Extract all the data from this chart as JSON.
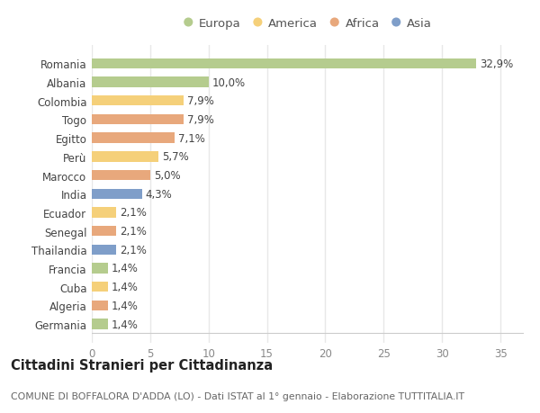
{
  "countries": [
    "Romania",
    "Albania",
    "Colombia",
    "Togo",
    "Egitto",
    "Perù",
    "Marocco",
    "India",
    "Ecuador",
    "Senegal",
    "Thailandia",
    "Francia",
    "Cuba",
    "Algeria",
    "Germania"
  ],
  "values": [
    32.9,
    10.0,
    7.9,
    7.9,
    7.1,
    5.7,
    5.0,
    4.3,
    2.1,
    2.1,
    2.1,
    1.4,
    1.4,
    1.4,
    1.4
  ],
  "labels": [
    "32,9%",
    "10,0%",
    "7,9%",
    "7,9%",
    "7,1%",
    "5,7%",
    "5,0%",
    "4,3%",
    "2,1%",
    "2,1%",
    "2,1%",
    "1,4%",
    "1,4%",
    "1,4%",
    "1,4%"
  ],
  "continents": [
    "Europa",
    "Europa",
    "America",
    "Africa",
    "Africa",
    "America",
    "Africa",
    "Asia",
    "America",
    "Africa",
    "Asia",
    "Europa",
    "America",
    "Africa",
    "Europa"
  ],
  "colors": {
    "Europa": "#b5cc8e",
    "America": "#f5d07a",
    "Africa": "#e8a87c",
    "Asia": "#7f9ec9"
  },
  "legend_order": [
    "Europa",
    "America",
    "Africa",
    "Asia"
  ],
  "xlim": [
    0,
    37
  ],
  "xticks": [
    0,
    5,
    10,
    15,
    20,
    25,
    30,
    35
  ],
  "title": "Cittadini Stranieri per Cittadinanza",
  "subtitle": "COMUNE DI BOFFALORA D'ADDA (LO) - Dati ISTAT al 1° gennaio - Elaborazione TUTTITALIA.IT",
  "bg_color": "#ffffff",
  "plot_bg_color": "#ffffff",
  "grid_color": "#e8e8e8",
  "bar_height": 0.55,
  "label_fontsize": 8.5,
  "tick_fontsize": 8.5,
  "legend_fontsize": 9.5,
  "title_fontsize": 10.5,
  "subtitle_fontsize": 7.8
}
